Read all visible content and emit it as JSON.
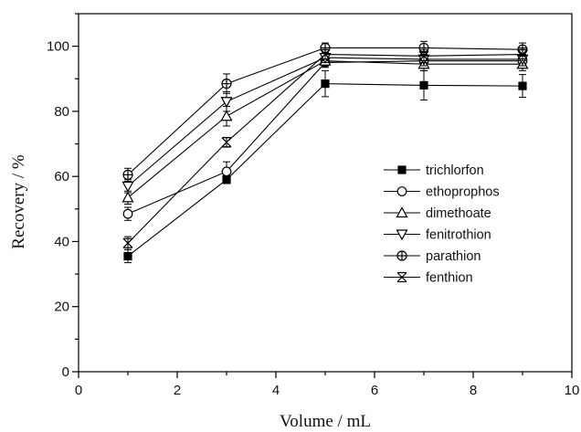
{
  "chart_data": {
    "type": "line",
    "title": "",
    "xlabel": "Volume / mL",
    "ylabel": "Recovery / %",
    "xlim": [
      0,
      10
    ],
    "ylim": [
      0,
      110
    ],
    "xticks": [
      0,
      2,
      4,
      6,
      8,
      10
    ],
    "yticks": [
      0,
      20,
      40,
      60,
      80,
      100
    ],
    "grid": false,
    "legend_position": "right",
    "x": [
      1,
      3,
      5,
      7,
      9
    ],
    "series": [
      {
        "name": "trichlorfon",
        "marker": "filled-square",
        "values": [
          35.5,
          59.0,
          88.5,
          88.0,
          87.8
        ],
        "errors": [
          2.0,
          1.2,
          4.0,
          4.5,
          3.5
        ]
      },
      {
        "name": "ethoprophos",
        "marker": "open-circle",
        "values": [
          48.5,
          61.5,
          95.0,
          95.5,
          95.5
        ],
        "errors": [
          2.0,
          3.0,
          1.5,
          2.0,
          2.0
        ]
      },
      {
        "name": "dimethoate",
        "marker": "open-triangle-up",
        "values": [
          53.5,
          78.5,
          95.5,
          94.5,
          94.5
        ],
        "errors": [
          2.0,
          3.0,
          1.5,
          2.0,
          2.0
        ]
      },
      {
        "name": "fenitrothion",
        "marker": "open-triangle-down",
        "values": [
          57.0,
          83.0,
          96.5,
          96.0,
          96.0
        ],
        "errors": [
          2.0,
          3.0,
          1.5,
          2.0,
          2.0
        ]
      },
      {
        "name": "parathion",
        "marker": "circle-plus",
        "values": [
          60.5,
          88.5,
          99.5,
          99.5,
          99.0
        ],
        "errors": [
          2.0,
          3.0,
          1.5,
          2.0,
          2.0
        ]
      },
      {
        "name": "fenthion",
        "marker": "x-triangle",
        "values": [
          39.5,
          70.5,
          97.5,
          97.0,
          97.5
        ],
        "errors": [
          2.0,
          1.5,
          1.5,
          2.0,
          2.0
        ]
      }
    ]
  }
}
